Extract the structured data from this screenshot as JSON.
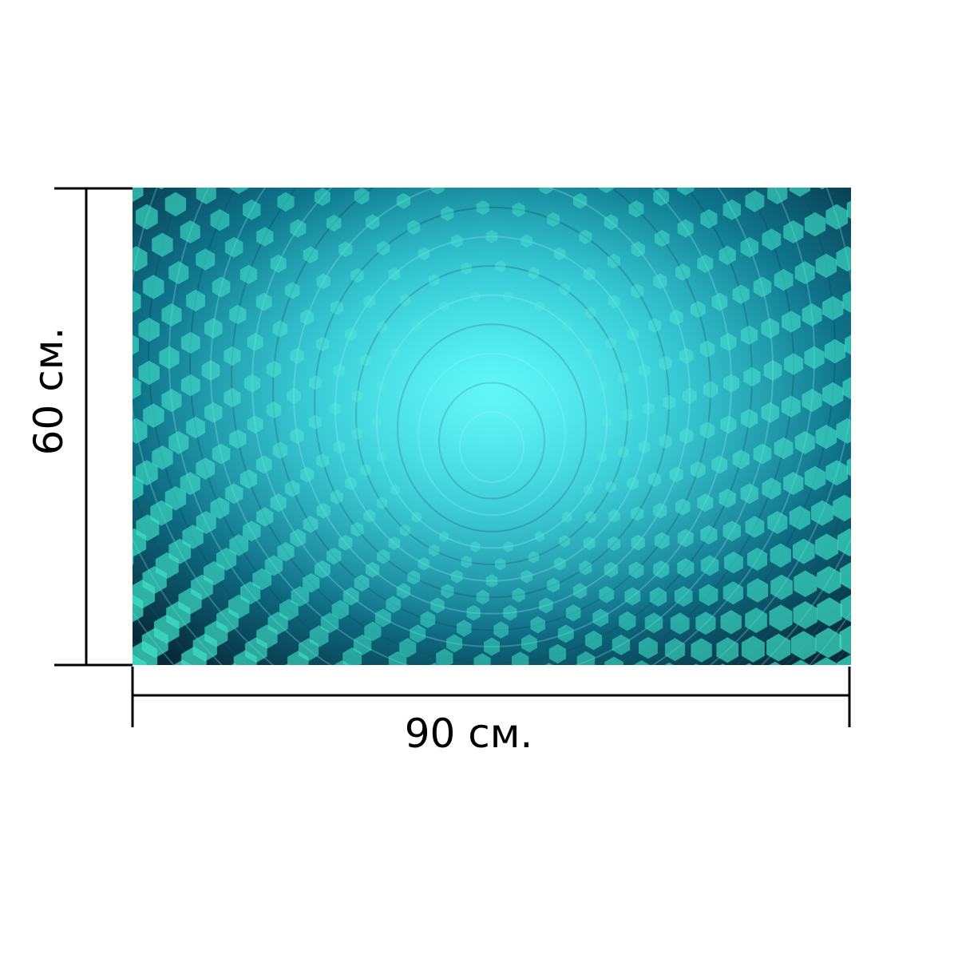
{
  "product": {
    "width_label": "90 см.",
    "height_label": "60 см.",
    "image_subject": "abstract-tunnel-image"
  },
  "colors": {
    "background": "#ffffff",
    "dimension_line": "#000000",
    "tunnel_core": "#2ef2f0",
    "tunnel_mid": "#19b9c6",
    "tunnel_dark": "#072a3a",
    "tile_light": "#3fe0c8",
    "tile_bright": "#8ffcff"
  }
}
